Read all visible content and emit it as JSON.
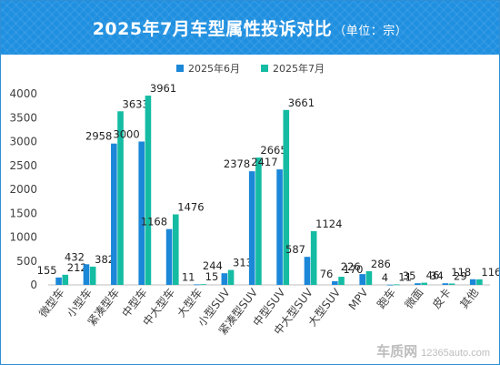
{
  "header": {
    "title": "2025年7月车型属性投诉对比",
    "subtitle": "（单位：宗）"
  },
  "watermark": {
    "brand": "车质网",
    "url": "12365auto.com"
  },
  "colors": {
    "header_bg": "#1f8fe0",
    "series_june": "#1b87d8",
    "series_july": "#15bca3",
    "axis_text": "#404040"
  },
  "chart_data": {
    "type": "bar",
    "categories": [
      "微型车",
      "小型车",
      "紧凑型车",
      "中型车",
      "中大型车",
      "大型车",
      "小型SUV",
      "紧凑型SUV",
      "中型SUV",
      "中大型SUV",
      "大型SUV",
      "MPV",
      "跑车",
      "微面",
      "皮卡",
      "其他"
    ],
    "series": [
      {
        "name": "2025年6月",
        "values": [
          155,
          432,
          2958,
          3000,
          1168,
          11,
          244,
          2378,
          2417,
          587,
          76,
          226,
          4,
          35,
          34,
          118
        ]
      },
      {
        "name": "2025年7月",
        "values": [
          212,
          382,
          3633,
          3961,
          1476,
          15,
          313,
          2665,
          3661,
          1124,
          170,
          286,
          11,
          46,
          29,
          116
        ]
      }
    ],
    "ylim": [
      0,
      4000
    ],
    "yticks": [
      0,
      500,
      1000,
      1500,
      2000,
      2500,
      3000,
      3500,
      4000
    ],
    "legend_position": "top-center",
    "grid": false
  }
}
